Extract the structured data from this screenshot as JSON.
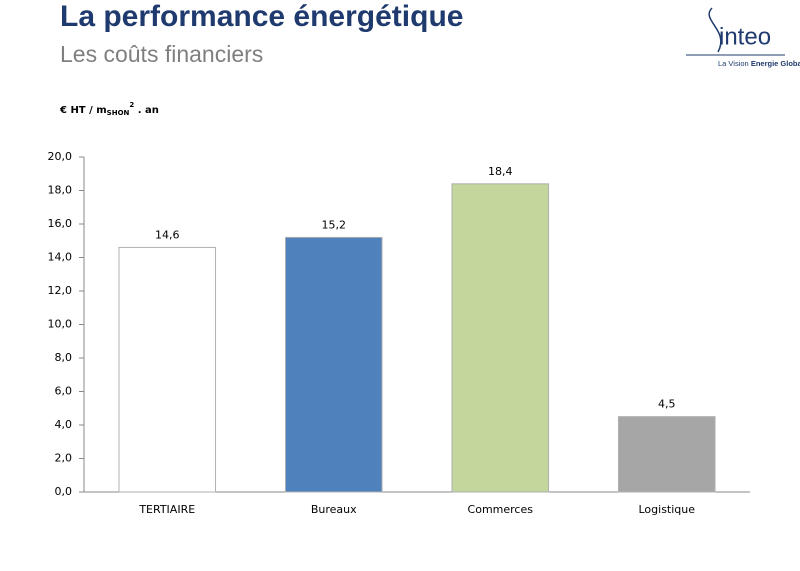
{
  "header": {
    "title": "La performance énergétique",
    "subtitle": "Les coûts financiers"
  },
  "logo": {
    "name": "inteo",
    "tagline": "La Vision",
    "tagline_bold": "Energie Globale"
  },
  "chart_data": {
    "type": "bar",
    "y_label": {
      "text": "€ HT / m",
      "sub": "SHON",
      "sup": "2",
      "suffix": ". an"
    },
    "categories": [
      "TERTIAIRE",
      "Bureaux",
      "Commerces",
      "Logistique"
    ],
    "values": [
      14.6,
      15.2,
      18.4,
      4.5
    ],
    "value_labels": [
      "14,6",
      "15,2",
      "18,4",
      "4,5"
    ],
    "colors": [
      "#ffffff",
      "#4f81bd",
      "#c3d69b",
      "#a6a6a6"
    ],
    "ylim": [
      0,
      20
    ],
    "yticks": [
      {
        "value": 0,
        "label": "0,0"
      },
      {
        "value": 2,
        "label": "2,0"
      },
      {
        "value": 4,
        "label": "4,0"
      },
      {
        "value": 6,
        "label": "6,0"
      },
      {
        "value": 8,
        "label": "8,0"
      },
      {
        "value": 10,
        "label": "10,0"
      },
      {
        "value": 12,
        "label": "12,0"
      },
      {
        "value": 14,
        "label": "14,0"
      },
      {
        "value": 16,
        "label": "16,0"
      },
      {
        "value": 18,
        "label": "18,0"
      },
      {
        "value": 20,
        "label": "20,0"
      }
    ],
    "grid": false
  }
}
